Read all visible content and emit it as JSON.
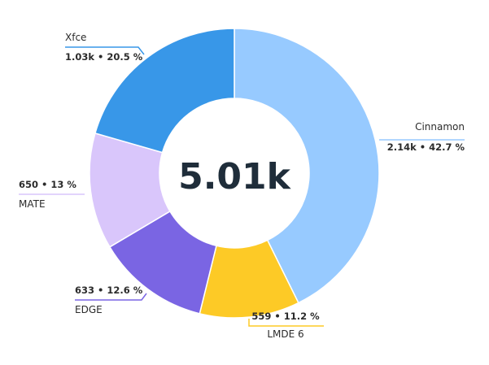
{
  "chart_data": {
    "type": "pie",
    "variant": "donut",
    "total_label": "5.01k",
    "slices": [
      {
        "name": "Cinnamon",
        "value": 2140,
        "value_label": "2.14k",
        "percent_label": "42.7 %",
        "color": "#97caff",
        "label_side": "right"
      },
      {
        "name": "LMDE 6",
        "value": 559,
        "value_label": "559",
        "percent_label": "11.2 %",
        "color": "#fdca26",
        "label_side": "bottom"
      },
      {
        "name": "EDGE",
        "value": 633,
        "value_label": "633",
        "percent_label": "12.6 %",
        "color": "#7a65e3",
        "label_side": "left"
      },
      {
        "name": "MATE",
        "value": 650,
        "value_label": "650",
        "percent_label": "13 %",
        "color": "#d9c6fb",
        "label_side": "left"
      },
      {
        "name": "Xfce",
        "value": 1030,
        "value_label": "1.03k",
        "percent_label": "20.5 %",
        "color": "#3897e8",
        "label_side": "left"
      }
    ]
  }
}
